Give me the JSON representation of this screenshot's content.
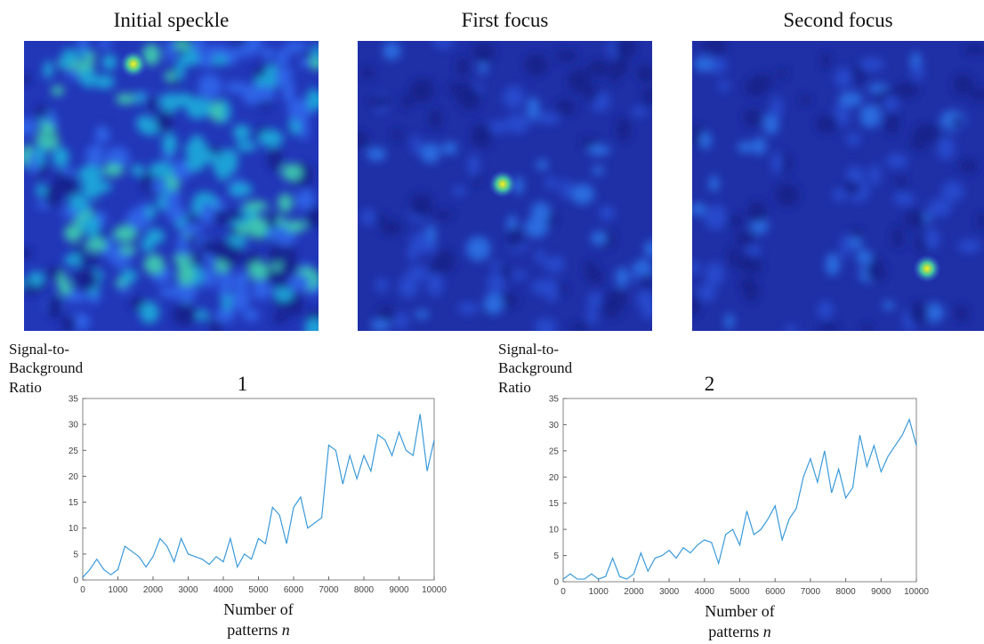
{
  "panels": [
    {
      "title": "Initial speckle"
    },
    {
      "title": "First focus"
    },
    {
      "title": "Second focus"
    }
  ],
  "chart_data": [
    {
      "type": "line",
      "title": "1",
      "y_label": "Signal-to-Background Ratio",
      "x_label": "Number of patterns",
      "x_variable": "n",
      "x": [
        0,
        200,
        400,
        600,
        800,
        1000,
        1200,
        1400,
        1600,
        1800,
        2000,
        2200,
        2400,
        2600,
        2800,
        3000,
        3200,
        3400,
        3600,
        3800,
        4000,
        4200,
        4400,
        4600,
        4800,
        5000,
        5200,
        5400,
        5600,
        5800,
        6000,
        6200,
        6400,
        6600,
        6800,
        7000,
        7200,
        7400,
        7600,
        7800,
        8000,
        8200,
        8400,
        8600,
        8800,
        9000,
        9200,
        9400,
        9600,
        9800,
        10000
      ],
      "values": [
        0.5,
        2,
        4,
        2,
        1,
        2,
        6.5,
        5.5,
        4.5,
        2.5,
        4.5,
        8,
        6.5,
        3.5,
        8,
        5,
        4.5,
        4,
        3,
        4.5,
        3.5,
        8,
        2.5,
        5,
        4,
        8,
        7,
        14,
        12.5,
        7,
        14,
        16,
        10,
        11,
        12,
        26,
        25,
        18.5,
        24,
        19.5,
        24,
        21,
        28,
        27,
        24,
        28.5,
        25,
        24,
        32,
        21,
        27
      ],
      "color": "#3a9ad9",
      "xlim": [
        0,
        10000
      ],
      "ylim": [
        0,
        35
      ],
      "xticks": [
        0,
        1000,
        2000,
        3000,
        4000,
        5000,
        6000,
        7000,
        8000,
        9000,
        10000
      ],
      "yticks": [
        0,
        5,
        10,
        15,
        20,
        25,
        30,
        35
      ]
    },
    {
      "type": "line",
      "title": "2",
      "y_label": "Signal-to-Background Ratio",
      "x_label": "Number of patterns",
      "x_variable": "n",
      "x": [
        0,
        200,
        400,
        600,
        800,
        1000,
        1200,
        1400,
        1600,
        1800,
        2000,
        2200,
        2400,
        2600,
        2800,
        3000,
        3200,
        3400,
        3600,
        3800,
        4000,
        4200,
        4400,
        4600,
        4800,
        5000,
        5200,
        5400,
        5600,
        5800,
        6000,
        6200,
        6400,
        6600,
        6800,
        7000,
        7200,
        7400,
        7600,
        7800,
        8000,
        8200,
        8400,
        8600,
        8800,
        9000,
        9200,
        9400,
        9600,
        9800,
        10000
      ],
      "values": [
        0.5,
        1.5,
        0.5,
        0.5,
        1.5,
        0.5,
        1,
        4.5,
        1,
        0.5,
        1.5,
        5.5,
        2,
        4.5,
        5,
        6,
        4.5,
        6.5,
        5.5,
        7,
        8,
        7.5,
        3.5,
        9,
        10,
        7,
        13.5,
        9,
        10,
        12,
        14.5,
        8,
        12,
        14,
        20,
        23.5,
        19,
        25,
        17,
        21.5,
        16,
        18,
        28,
        22,
        26,
        21,
        24,
        26,
        28,
        31,
        26
      ],
      "color": "#3a9ad9",
      "xlim": [
        0,
        10000
      ],
      "ylim": [
        0,
        35
      ],
      "xticks": [
        0,
        1000,
        2000,
        3000,
        4000,
        5000,
        6000,
        7000,
        8000,
        9000,
        10000
      ],
      "yticks": [
        0,
        5,
        10,
        15,
        20,
        25,
        30,
        35
      ]
    }
  ]
}
